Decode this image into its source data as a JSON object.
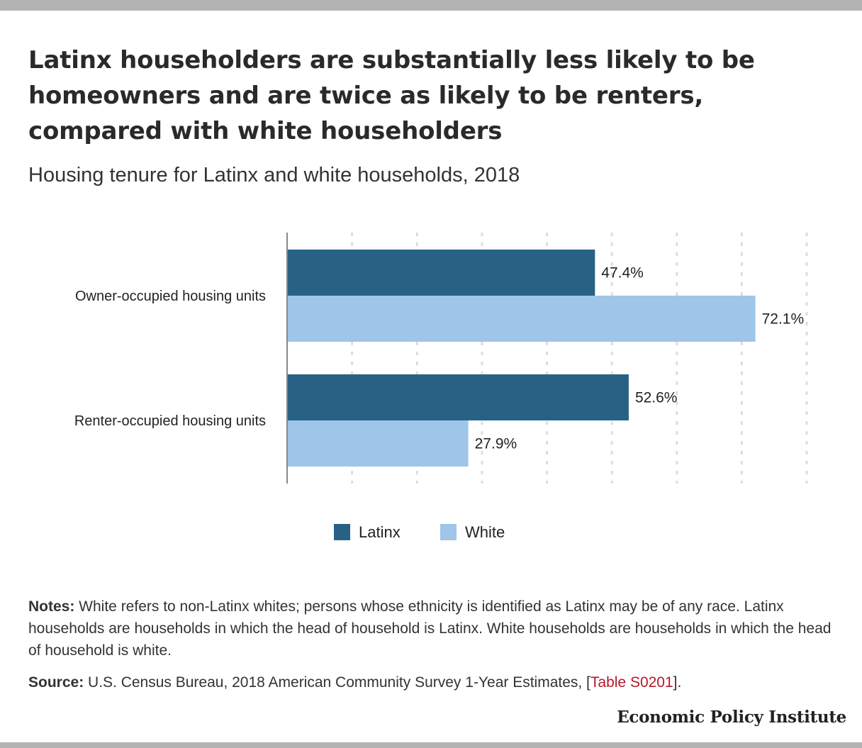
{
  "title": "Latinx householders are substantially less likely to be homeowners and are twice as likely to be renters, compared with white householders",
  "subtitle": "Housing tenure for Latinx and white households, 2018",
  "chart_data": {
    "type": "bar",
    "orientation": "horizontal",
    "categories": [
      "Owner-occupied housing units",
      "Renter-occupied housing units"
    ],
    "series": [
      {
        "name": "Latinx",
        "values": [
          47.4,
          52.6
        ],
        "labels": [
          "47.4%",
          "52.6%"
        ],
        "color": "#276285"
      },
      {
        "name": "White",
        "values": [
          72.1,
          27.9
        ],
        "labels": [
          "72.1%",
          "27.9%"
        ],
        "color": "#9fc5e8"
      }
    ],
    "xlim": [
      0,
      80
    ],
    "grid": true,
    "legend": "bottom-center"
  },
  "notes": {
    "label": "Notes:",
    "text": " White refers to non-Latinx whites; persons whose ethnicity is identified as Latinx may be of any race. Latinx households are households in which the head of household is Latinx. White households are households in which the head of household is white."
  },
  "source": {
    "label": "Source:",
    "text": " U.S. Census Bureau, 2018 American Community Survey 1-Year Estimates, [",
    "link_text": "Table S0201",
    "suffix": "]."
  },
  "brand": "Economic Policy Institute"
}
